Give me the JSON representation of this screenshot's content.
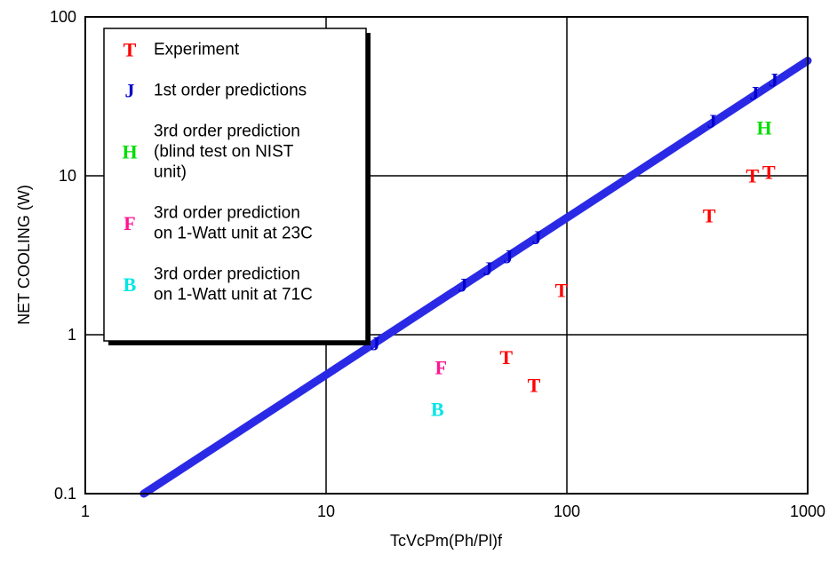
{
  "chart_data": {
    "type": "scatter",
    "title": "",
    "xlabel": "TcVcPm(Ph/Pl)f",
    "ylabel": "NET COOLING (W)",
    "x_scale": "log",
    "y_scale": "log",
    "xlim": [
      1,
      1000
    ],
    "ylim": [
      0.1,
      100
    ],
    "x_ticks": [
      "1",
      "10",
      "100",
      "1000"
    ],
    "y_ticks": [
      "0.1",
      "1",
      "10",
      "100"
    ],
    "x_tick_values": [
      1,
      10,
      100,
      1000
    ],
    "y_tick_values": [
      0.1,
      1,
      10,
      100
    ],
    "grid": true,
    "legend_position": "top-left",
    "series": [
      {
        "name": "Experiment",
        "marker": "T",
        "color": "#ff0000",
        "points": [
          [
            56,
            0.72
          ],
          [
            73,
            0.48
          ],
          [
            95,
            1.9
          ],
          [
            390,
            5.6
          ],
          [
            590,
            10
          ],
          [
            690,
            10.5
          ]
        ]
      },
      {
        "name": "1st order predictions",
        "marker": "J",
        "color": "#0000cc",
        "line": {
          "x": [
            1.75,
            1000
          ],
          "y": [
            0.1,
            53
          ]
        },
        "points": [
          [
            16,
            0.88
          ],
          [
            37,
            2.05
          ],
          [
            47,
            2.6
          ],
          [
            57,
            3.1
          ],
          [
            75,
            4.1
          ],
          [
            400,
            22
          ],
          [
            600,
            33
          ],
          [
            720,
            40
          ]
        ]
      },
      {
        "name_lines": [
          "3rd order prediction",
          "(blind test on NIST",
          "unit)"
        ],
        "marker": "H",
        "color": "#00dd00",
        "points": [
          [
            660,
            20
          ]
        ]
      },
      {
        "name_lines": [
          "3rd order prediction",
          "on 1-Watt unit at 23C"
        ],
        "marker": "F",
        "color": "#ff1493",
        "points": [
          [
            30,
            0.62
          ]
        ]
      },
      {
        "name_lines": [
          "3rd order prediction",
          "on 1-Watt unit at 71C"
        ],
        "marker": "B",
        "color": "#00e5e5",
        "points": [
          [
            29,
            0.34
          ]
        ]
      }
    ]
  }
}
